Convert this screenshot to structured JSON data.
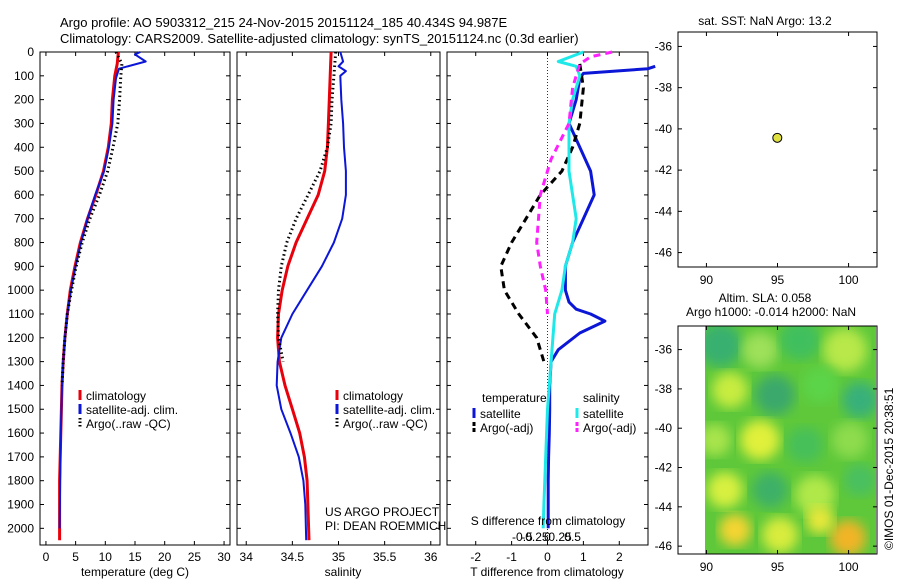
{
  "header": {
    "line1": "Argo profile: AO 5903312_215 24-Nov-2015 20151124_185 40.434S 94.987E",
    "line2": "Climatology: CARS2009. Satellite-adjusted climatology: synTS_20151124.nc (0.3d earlier)"
  },
  "side_label": "©IMOS 01-Dec-2015 20:38:51",
  "colors": {
    "red": "#e8000b",
    "blue": "#0b16d6",
    "black": "#000000",
    "cyan": "#1ee8e8",
    "magenta": "#ff20ff"
  },
  "chart_data": [
    {
      "type": "line",
      "id": "temperature",
      "xlabel": "temperature (deg C)",
      "xlim": [
        -1,
        31
      ],
      "ylim": [
        2070,
        0
      ],
      "xticks": [
        0,
        5,
        10,
        15,
        20,
        25,
        30
      ],
      "yticks": [
        0,
        100,
        200,
        300,
        400,
        500,
        600,
        700,
        800,
        900,
        1000,
        1100,
        1200,
        1300,
        1400,
        1500,
        1600,
        1700,
        1800,
        1900,
        2000
      ],
      "legend": [
        "climatology",
        "satellite-adj. clim.",
        "Argo(..raw -QC)"
      ],
      "series": [
        {
          "name": "climatology",
          "color": "red",
          "style": "solid",
          "width": 3,
          "x": [
            12.2,
            12.0,
            11.6,
            11.2,
            11.0,
            10.5,
            9.7,
            8.4,
            7.0,
            5.8,
            4.9,
            4.1,
            3.6,
            3.2,
            2.9,
            2.7,
            2.6,
            2.5,
            2.4,
            2.3,
            2.3
          ],
          "y": [
            0,
            50,
            100,
            200,
            300,
            400,
            500,
            600,
            700,
            800,
            900,
            1000,
            1100,
            1200,
            1300,
            1400,
            1500,
            1600,
            1700,
            1800,
            2050
          ]
        },
        {
          "name": "satellite-adj. clim.",
          "color": "blue",
          "style": "solid",
          "width": 2,
          "x": [
            15.9,
            15.0,
            16.8,
            12.3,
            11.8,
            11.4,
            11.2,
            10.6,
            9.8,
            8.3,
            7.0,
            5.9,
            5.0,
            4.2,
            3.6,
            3.2,
            2.9,
            2.7,
            2.5,
            2.4,
            2.3
          ],
          "y": [
            0,
            10,
            40,
            70,
            110,
            200,
            300,
            400,
            500,
            600,
            700,
            800,
            900,
            1000,
            1100,
            1200,
            1300,
            1400,
            1600,
            1800,
            2000
          ]
        },
        {
          "name": "Argo(..raw -QC)",
          "color": "black",
          "style": "dot",
          "width": 3,
          "x": [
            11.8,
            12.8,
            12.6,
            12.4,
            12.1,
            11.3,
            10.4,
            9.0,
            7.4,
            6.1,
            5.1,
            4.3,
            3.6,
            3.2,
            2.9,
            2.7
          ],
          "y": [
            0,
            50,
            100,
            200,
            300,
            400,
            500,
            600,
            700,
            800,
            900,
            1000,
            1100,
            1200,
            1300,
            1400
          ]
        }
      ]
    },
    {
      "type": "line",
      "id": "salinity",
      "xlabel": "salinity",
      "xlim": [
        33.9,
        36.1
      ],
      "ylim": [
        2070,
        0
      ],
      "xticks": [
        34,
        34.5,
        35,
        35.5,
        36
      ],
      "legend": [
        "climatology",
        "satellite-adj. clim.",
        "Argo(..raw -QC)"
      ],
      "annotation": [
        "US ARGO PROJECT",
        "PI: DEAN ROEMMICH"
      ],
      "series": [
        {
          "name": "climatology",
          "color": "red",
          "style": "solid",
          "width": 3,
          "x": [
            34.92,
            34.91,
            34.9,
            34.89,
            34.88,
            34.85,
            34.78,
            34.66,
            34.54,
            34.45,
            34.39,
            34.35,
            34.34,
            34.36,
            34.42,
            34.5,
            34.58,
            34.63,
            34.66,
            34.68
          ],
          "y": [
            0,
            100,
            200,
            300,
            400,
            500,
            600,
            700,
            800,
            900,
            1000,
            1100,
            1200,
            1300,
            1400,
            1500,
            1600,
            1700,
            1800,
            2050
          ]
        },
        {
          "name": "satellite-adj. clim.",
          "color": "blue",
          "style": "solid",
          "width": 2,
          "x": [
            35.02,
            35.05,
            35.0,
            35.08,
            35.02,
            35.03,
            35.05,
            35.06,
            35.08,
            35.08,
            35.04,
            34.95,
            34.82,
            34.66,
            34.5,
            34.38,
            34.34,
            34.33,
            34.38,
            34.48,
            34.57,
            34.62,
            34.64,
            34.65
          ],
          "y": [
            0,
            40,
            60,
            80,
            100,
            200,
            300,
            400,
            500,
            600,
            700,
            800,
            900,
            1000,
            1100,
            1200,
            1300,
            1400,
            1500,
            1600,
            1700,
            1800,
            1900,
            2050
          ]
        },
        {
          "name": "Argo(..raw -QC)",
          "color": "black",
          "style": "dot",
          "width": 3,
          "x": [
            34.97,
            34.95,
            34.93,
            34.92,
            34.88,
            34.8,
            34.67,
            34.54,
            34.44,
            34.38,
            34.35,
            34.34,
            34.35,
            34.4
          ],
          "y": [
            0,
            100,
            200,
            300,
            400,
            500,
            600,
            700,
            800,
            900,
            1000,
            1100,
            1200,
            1300
          ]
        }
      ]
    },
    {
      "type": "line",
      "id": "difference",
      "xlabel": "T difference from climatology",
      "top_axis_label": "S difference from climatology",
      "xlim": [
        -2.8,
        2.8
      ],
      "ylim": [
        2070,
        0
      ],
      "xticks": [
        -2,
        -1,
        0,
        1,
        2
      ],
      "s_ticks": [
        -0.5,
        -0.25,
        0,
        0.25,
        0.5
      ],
      "legend_headers": [
        "temperature",
        "salinity"
      ],
      "legend": [
        "satellite",
        "Argo(-adj)",
        "satellite",
        "Argo(-adj)"
      ],
      "series": [
        {
          "name": "satellite",
          "color": "blue",
          "style": "solid",
          "width": 3,
          "x": [
            3.0,
            2.8,
            1.0,
            0.9,
            0.8,
            0.6,
            0.9,
            1.2,
            1.3,
            1.0,
            0.7,
            0.5,
            0.5,
            0.6,
            0.8,
            1.2,
            1.6,
            0.9,
            0.3,
            0.1,
            0.06,
            0.06,
            0.05,
            0.03,
            0.02,
            0.02
          ],
          "y": [
            60,
            70,
            90,
            110,
            200,
            300,
            400,
            500,
            600,
            700,
            800,
            900,
            1000,
            1050,
            1080,
            1100,
            1130,
            1180,
            1250,
            1300,
            1400,
            1500,
            1600,
            1700,
            1800,
            2000
          ]
        },
        {
          "name": "Argo(-adj)",
          "color": "black",
          "style": "dash",
          "width": 3,
          "x": [
            0.9,
            1.0,
            0.9,
            0.7,
            0.4,
            0.1,
            -0.2,
            -0.6,
            -1.0,
            -1.3,
            -1.2,
            -0.8,
            -0.3,
            -0.1
          ],
          "y": [
            50,
            150,
            300,
            400,
            500,
            550,
            600,
            700,
            800,
            900,
            1000,
            1100,
            1200,
            1300
          ]
        },
        {
          "name": "satellite",
          "color": "cyan",
          "style": "solid",
          "width": 3,
          "x": [
            1.0,
            0.3,
            0.8,
            0.9,
            0.7,
            0.6,
            0.6,
            0.8,
            0.7,
            0.5,
            0.4,
            0.2,
            0.1,
            0.0,
            -0.05,
            -0.1,
            -0.12
          ],
          "y": [
            0,
            40,
            60,
            100,
            200,
            300,
            500,
            700,
            800,
            900,
            1000,
            1100,
            1300,
            1500,
            1700,
            1900,
            2000
          ]
        },
        {
          "name": "Argo(-adj)",
          "color": "magenta",
          "style": "dash",
          "width": 3,
          "x": [
            1.8,
            1.2,
            0.9,
            0.7,
            0.6,
            0.1,
            -0.2,
            -0.3,
            -0.2,
            -0.05,
            0.0
          ],
          "y": [
            0,
            20,
            50,
            150,
            300,
            450,
            600,
            800,
            900,
            1000,
            1100
          ]
        }
      ]
    },
    {
      "type": "scatter",
      "id": "sst-map",
      "title": "sat. SST: NaN Argo: 13.2",
      "xlim": [
        88,
        102
      ],
      "ylim": [
        -46.7,
        -35.3
      ],
      "xticks": [
        90,
        95,
        100
      ],
      "yticks": [
        -36,
        -38,
        -40,
        -42,
        -44,
        -46
      ],
      "points": [
        {
          "x": 94.987,
          "y": -40.434,
          "color": "#e0e040"
        }
      ]
    },
    {
      "type": "heatmap",
      "id": "sla-map",
      "title": [
        "Altim. SLA: 0.058",
        "Argo h1000: -0.014 h2000: NaN"
      ],
      "xlim": [
        88,
        102
      ],
      "ylim": [
        -46.4,
        -34.8
      ],
      "xticks": [
        90,
        95,
        100
      ],
      "yticks": [
        -36,
        -38,
        -40,
        -42,
        -44,
        -46
      ]
    }
  ]
}
